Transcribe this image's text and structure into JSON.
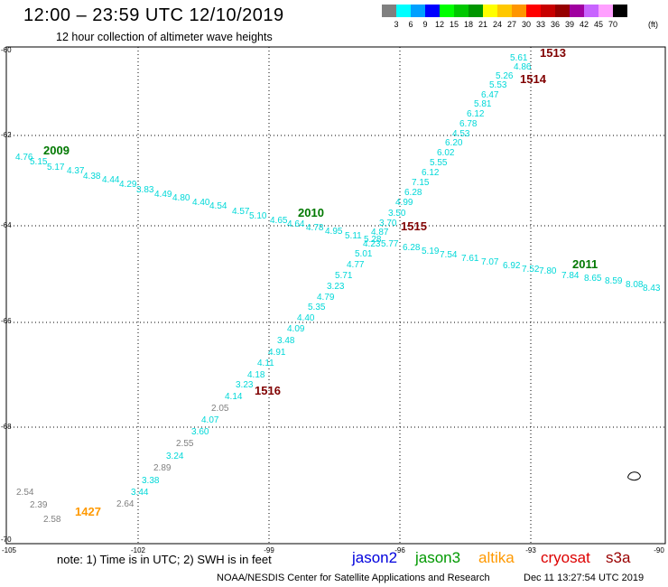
{
  "header": {
    "title": "12:00  –  23:59 UTC 12/10/2019",
    "subtitle": "12 hour collection of altimeter wave heights"
  },
  "legend": {
    "colors": [
      "#808080",
      "#00ffff",
      "#00a0ff",
      "#0000ff",
      "#00ff00",
      "#00c800",
      "#009600",
      "#ffff00",
      "#ffc800",
      "#ff9600",
      "#ff0000",
      "#c80000",
      "#960000",
      "#a000a0",
      "#c864ff",
      "#ffa0ff",
      "#000000"
    ],
    "ticks": [
      "3",
      "6",
      "9",
      "12",
      "15",
      "18",
      "21",
      "24",
      "27",
      "30",
      "33",
      "36",
      "39",
      "42",
      "45",
      "70"
    ],
    "unit": "(ft)"
  },
  "map": {
    "lon_labels": [
      "-105",
      "-102",
      "-99",
      "-96",
      "-93",
      "-90"
    ],
    "lat_labels": [
      "-60",
      "-62",
      "-64",
      "-66",
      "-68",
      "-70"
    ],
    "colors": {
      "cyan": "#00d8d8",
      "gray": "#808080",
      "green": "#007800",
      "darkred": "#800000",
      "orange": "#ff9900"
    },
    "track_labels": [
      {
        "text": "1513",
        "color": "darkred"
      },
      {
        "text": "1514",
        "color": "darkred"
      },
      {
        "text": "2009",
        "color": "green"
      },
      {
        "text": "2010",
        "color": "green"
      },
      {
        "text": "1515",
        "color": "darkred"
      },
      {
        "text": "2011",
        "color": "green"
      },
      {
        "text": "1516",
        "color": "darkred"
      },
      {
        "text": "1427",
        "color": "orange"
      }
    ],
    "values": [
      {
        "text": "5.61",
        "color": "cyan"
      },
      {
        "text": "4.86",
        "color": "cyan"
      },
      {
        "text": "5.26",
        "color": "cyan"
      },
      {
        "text": "5.53",
        "color": "cyan"
      },
      {
        "text": "6.47",
        "color": "cyan"
      },
      {
        "text": "5.81",
        "color": "cyan"
      },
      {
        "text": "6.12",
        "color": "cyan"
      },
      {
        "text": "6.78",
        "color": "cyan"
      },
      {
        "text": "4.53",
        "color": "cyan"
      },
      {
        "text": "6.20",
        "color": "cyan"
      },
      {
        "text": "6.02",
        "color": "cyan"
      },
      {
        "text": "5.55",
        "color": "cyan"
      },
      {
        "text": "6.12",
        "color": "cyan"
      },
      {
        "text": "7.15",
        "color": "cyan"
      },
      {
        "text": "6.28",
        "color": "cyan"
      },
      {
        "text": "4.99",
        "color": "cyan"
      },
      {
        "text": "3.50",
        "color": "cyan"
      },
      {
        "text": "3.70",
        "color": "cyan"
      },
      {
        "text": "4.87",
        "color": "cyan"
      },
      {
        "text": "4.23",
        "color": "cyan"
      },
      {
        "text": "5.01",
        "color": "cyan"
      },
      {
        "text": "4.77",
        "color": "cyan"
      },
      {
        "text": "5.71",
        "color": "cyan"
      },
      {
        "text": "3.23",
        "color": "cyan"
      },
      {
        "text": "4.79",
        "color": "cyan"
      },
      {
        "text": "5.35",
        "color": "cyan"
      },
      {
        "text": "4.40",
        "color": "cyan"
      },
      {
        "text": "4.09",
        "color": "cyan"
      },
      {
        "text": "3.48",
        "color": "cyan"
      },
      {
        "text": "4.91",
        "color": "cyan"
      },
      {
        "text": "4.11",
        "color": "cyan"
      },
      {
        "text": "4.18",
        "color": "cyan"
      },
      {
        "text": "3.23",
        "color": "cyan"
      },
      {
        "text": "4.14",
        "color": "cyan"
      },
      {
        "text": "2.05",
        "color": "gray"
      },
      {
        "text": "4.07",
        "color": "cyan"
      },
      {
        "text": "3.60",
        "color": "cyan"
      },
      {
        "text": "2.55",
        "color": "gray"
      },
      {
        "text": "3.24",
        "color": "cyan"
      },
      {
        "text": "2.89",
        "color": "gray"
      },
      {
        "text": "3.38",
        "color": "cyan"
      },
      {
        "text": "3.44",
        "color": "cyan"
      },
      {
        "text": "2.64",
        "color": "gray"
      },
      {
        "text": "2.54",
        "color": "gray"
      },
      {
        "text": "2.39",
        "color": "gray"
      },
      {
        "text": "2.58",
        "color": "gray"
      },
      {
        "text": "4.76",
        "color": "cyan"
      },
      {
        "text": "5.15",
        "color": "cyan"
      },
      {
        "text": "5.17",
        "color": "cyan"
      },
      {
        "text": "4.37",
        "color": "cyan"
      },
      {
        "text": "4.38",
        "color": "cyan"
      },
      {
        "text": "4.44",
        "color": "cyan"
      },
      {
        "text": "4.29",
        "color": "cyan"
      },
      {
        "text": "3.83",
        "color": "cyan"
      },
      {
        "text": "4.49",
        "color": "cyan"
      },
      {
        "text": "4.80",
        "color": "cyan"
      },
      {
        "text": "4.40",
        "color": "cyan"
      },
      {
        "text": "4.54",
        "color": "cyan"
      },
      {
        "text": "4.57",
        "color": "cyan"
      },
      {
        "text": "5.10",
        "color": "cyan"
      },
      {
        "text": "4.65",
        "color": "cyan"
      },
      {
        "text": "4.64",
        "color": "cyan"
      },
      {
        "text": "4.78",
        "color": "cyan"
      },
      {
        "text": "4.95",
        "color": "cyan"
      },
      {
        "text": "5.11",
        "color": "cyan"
      },
      {
        "text": "5.28",
        "color": "cyan"
      },
      {
        "text": "5.77",
        "color": "cyan"
      },
      {
        "text": "6.28",
        "color": "cyan"
      },
      {
        "text": "5.19",
        "color": "cyan"
      },
      {
        "text": "7.54",
        "color": "cyan"
      },
      {
        "text": "7.61",
        "color": "cyan"
      },
      {
        "text": "7.07",
        "color": "cyan"
      },
      {
        "text": "6.92",
        "color": "cyan"
      },
      {
        "text": "7.52",
        "color": "cyan"
      },
      {
        "text": "7.80",
        "color": "cyan"
      },
      {
        "text": "7.84",
        "color": "cyan"
      },
      {
        "text": "8.65",
        "color": "cyan"
      },
      {
        "text": "8.59",
        "color": "cyan"
      },
      {
        "text": "8.08",
        "color": "cyan"
      },
      {
        "text": "8.43",
        "color": "cyan"
      }
    ]
  },
  "footer": {
    "note": "note:  1) Time is in UTC;  2) SWH is in feet",
    "satellites": [
      {
        "name": "jason2",
        "color": "#0000dd"
      },
      {
        "name": "jason3",
        "color": "#009900"
      },
      {
        "name": "altika",
        "color": "#ff9900"
      },
      {
        "name": "cryosat",
        "color": "#dd0000"
      },
      {
        "name": "s3a",
        "color": "#990000"
      }
    ],
    "credit": "NOAA/NESDIS Center for Satellite Applications and Research",
    "timestamp": "Dec 11 13:27:54 UTC 2019"
  }
}
